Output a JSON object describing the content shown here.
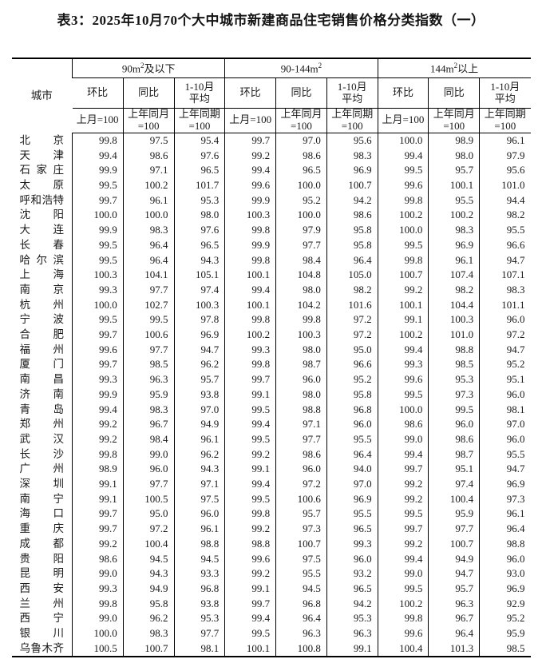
{
  "title": "表3：2025年10月70个大中城市新建商品住宅销售价格分类指数（一）",
  "table": {
    "city_header": "城市",
    "groups": [
      {
        "pre": "90m",
        "sup": "2",
        "post": "及以下"
      },
      {
        "pre": "90-144m",
        "sup": "2",
        "post": ""
      },
      {
        "pre": "144m",
        "sup": "2",
        "post": "以上"
      }
    ],
    "metric_headers": [
      {
        "line1": "环比",
        "line2": ""
      },
      {
        "line1": "同比",
        "line2": ""
      },
      {
        "line1": "1-10月",
        "line2": "平均"
      }
    ],
    "base_headers": [
      {
        "line1": "上月=100",
        "line2": ""
      },
      {
        "line1": "上年同月",
        "line2": "=100"
      },
      {
        "line1": "上年同期",
        "line2": "=100"
      }
    ],
    "rows": [
      {
        "city": "北京",
        "values": [
          "99.8",
          "97.5",
          "95.4",
          "99.7",
          "97.0",
          "95.6",
          "100.0",
          "98.9",
          "96.1"
        ]
      },
      {
        "city": "天津",
        "values": [
          "99.4",
          "98.6",
          "97.6",
          "99.2",
          "98.6",
          "98.3",
          "99.4",
          "98.0",
          "97.9"
        ]
      },
      {
        "city": "石家庄",
        "values": [
          "99.9",
          "97.1",
          "96.5",
          "99.4",
          "96.5",
          "96.9",
          "99.5",
          "95.7",
          "95.6"
        ]
      },
      {
        "city": "太原",
        "values": [
          "99.5",
          "100.2",
          "101.7",
          "99.6",
          "100.0",
          "100.7",
          "99.6",
          "100.1",
          "101.0"
        ]
      },
      {
        "city": "呼和浩特",
        "values": [
          "99.7",
          "96.1",
          "95.3",
          "99.9",
          "95.2",
          "94.2",
          "99.8",
          "95.5",
          "94.4"
        ]
      },
      {
        "city": "沈阳",
        "values": [
          "100.0",
          "100.0",
          "98.0",
          "100.3",
          "100.0",
          "98.6",
          "100.2",
          "100.2",
          "98.2"
        ]
      },
      {
        "city": "大连",
        "values": [
          "99.9",
          "98.3",
          "97.6",
          "99.8",
          "97.9",
          "95.8",
          "100.0",
          "98.3",
          "95.5"
        ]
      },
      {
        "city": "长春",
        "values": [
          "99.5",
          "96.4",
          "96.5",
          "99.9",
          "97.7",
          "95.8",
          "99.5",
          "96.9",
          "96.6"
        ]
      },
      {
        "city": "哈尔滨",
        "values": [
          "99.5",
          "96.4",
          "94.3",
          "99.8",
          "98.4",
          "96.4",
          "99.8",
          "96.1",
          "94.7"
        ]
      },
      {
        "city": "上海",
        "values": [
          "100.3",
          "104.1",
          "105.1",
          "100.1",
          "104.8",
          "105.0",
          "100.7",
          "107.4",
          "107.1"
        ]
      },
      {
        "city": "南京",
        "values": [
          "99.3",
          "97.7",
          "97.4",
          "99.4",
          "98.0",
          "98.2",
          "99.2",
          "98.2",
          "98.3"
        ]
      },
      {
        "city": "杭州",
        "values": [
          "100.0",
          "102.7",
          "100.3",
          "100.1",
          "104.2",
          "101.6",
          "100.1",
          "104.4",
          "101.1"
        ]
      },
      {
        "city": "宁波",
        "values": [
          "99.5",
          "99.5",
          "97.8",
          "99.8",
          "99.8",
          "97.2",
          "99.1",
          "100.3",
          "96.0"
        ]
      },
      {
        "city": "合肥",
        "values": [
          "99.7",
          "100.6",
          "96.9",
          "100.2",
          "100.3",
          "97.2",
          "100.2",
          "101.0",
          "97.2"
        ]
      },
      {
        "city": "福州",
        "values": [
          "99.6",
          "97.7",
          "94.7",
          "99.3",
          "98.0",
          "95.0",
          "99.4",
          "98.8",
          "94.7"
        ]
      },
      {
        "city": "厦门",
        "values": [
          "99.7",
          "98.5",
          "96.2",
          "99.8",
          "98.7",
          "96.6",
          "99.3",
          "98.5",
          "95.2"
        ]
      },
      {
        "city": "南昌",
        "values": [
          "99.3",
          "96.3",
          "95.7",
          "99.7",
          "96.0",
          "95.2",
          "99.6",
          "95.3",
          "95.1"
        ]
      },
      {
        "city": "济南",
        "values": [
          "99.9",
          "95.9",
          "93.8",
          "99.1",
          "98.0",
          "95.8",
          "99.5",
          "97.3",
          "96.0"
        ]
      },
      {
        "city": "青岛",
        "values": [
          "99.4",
          "98.3",
          "97.0",
          "99.5",
          "98.8",
          "96.8",
          "100.0",
          "99.5",
          "98.1"
        ]
      },
      {
        "city": "郑州",
        "values": [
          "99.2",
          "96.7",
          "94.9",
          "99.4",
          "97.1",
          "96.0",
          "98.6",
          "96.0",
          "97.0"
        ]
      },
      {
        "city": "武汉",
        "values": [
          "99.2",
          "98.4",
          "96.1",
          "99.5",
          "97.7",
          "95.5",
          "99.0",
          "98.6",
          "96.0"
        ]
      },
      {
        "city": "长沙",
        "values": [
          "99.8",
          "99.0",
          "96.2",
          "99.2",
          "98.6",
          "96.4",
          "99.4",
          "98.7",
          "95.5"
        ]
      },
      {
        "city": "广州",
        "values": [
          "98.9",
          "96.0",
          "94.3",
          "99.1",
          "96.0",
          "94.0",
          "99.7",
          "95.1",
          "94.7"
        ]
      },
      {
        "city": "深圳",
        "values": [
          "99.1",
          "97.7",
          "97.1",
          "99.4",
          "97.2",
          "97.0",
          "99.2",
          "97.4",
          "96.9"
        ]
      },
      {
        "city": "南宁",
        "values": [
          "99.1",
          "100.5",
          "97.5",
          "99.5",
          "100.6",
          "96.9",
          "99.2",
          "100.4",
          "97.3"
        ]
      },
      {
        "city": "海口",
        "values": [
          "99.7",
          "95.0",
          "96.0",
          "99.8",
          "95.7",
          "95.5",
          "99.5",
          "95.9",
          "96.1"
        ]
      },
      {
        "city": "重庆",
        "values": [
          "99.7",
          "97.2",
          "96.1",
          "99.2",
          "97.3",
          "96.5",
          "99.7",
          "97.7",
          "96.4"
        ]
      },
      {
        "city": "成都",
        "values": [
          "99.2",
          "100.4",
          "98.8",
          "98.8",
          "100.7",
          "99.3",
          "99.2",
          "100.7",
          "98.8"
        ]
      },
      {
        "city": "贵阳",
        "values": [
          "98.6",
          "94.5",
          "94.5",
          "99.6",
          "97.5",
          "96.0",
          "99.4",
          "94.9",
          "96.0"
        ]
      },
      {
        "city": "昆明",
        "values": [
          "99.0",
          "94.3",
          "93.3",
          "99.2",
          "95.5",
          "93.2",
          "99.0",
          "94.7",
          "93.0"
        ]
      },
      {
        "city": "西安",
        "values": [
          "99.3",
          "94.9",
          "96.8",
          "99.1",
          "94.5",
          "96.5",
          "99.5",
          "95.7",
          "96.9"
        ]
      },
      {
        "city": "兰州",
        "values": [
          "99.8",
          "95.8",
          "93.8",
          "99.7",
          "96.8",
          "94.2",
          "100.2",
          "96.3",
          "92.9"
        ]
      },
      {
        "city": "西宁",
        "values": [
          "99.0",
          "96.2",
          "95.3",
          "99.4",
          "96.4",
          "95.3",
          "99.8",
          "96.7",
          "95.2"
        ]
      },
      {
        "city": "银川",
        "values": [
          "100.0",
          "98.3",
          "97.7",
          "99.5",
          "96.3",
          "96.3",
          "99.6",
          "96.4",
          "95.9"
        ]
      },
      {
        "city": "乌鲁木齐",
        "values": [
          "100.5",
          "100.7",
          "98.1",
          "100.1",
          "100.8",
          "99.1",
          "100.4",
          "101.3",
          "98.5"
        ]
      }
    ]
  }
}
